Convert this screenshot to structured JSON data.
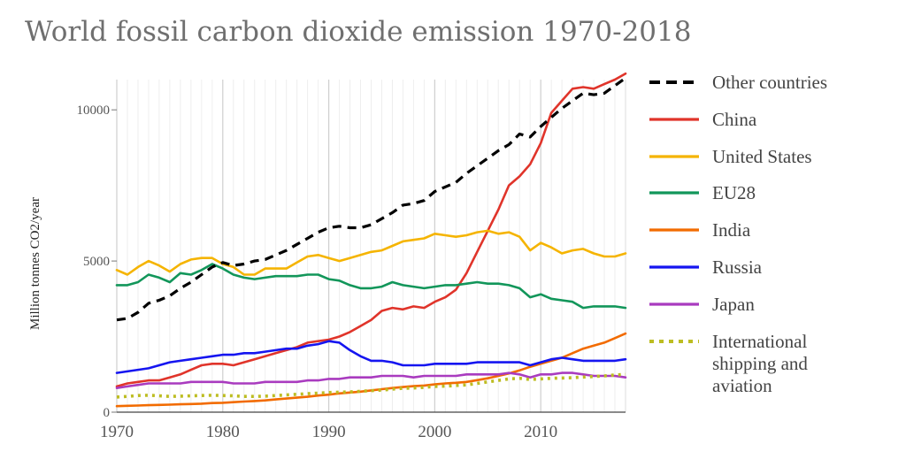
{
  "chart_data": {
    "type": "line",
    "title": "World fossil carbon dioxide emission 1970-2018",
    "xlabel": "",
    "ylabel": "Million tonnes CO2/year",
    "xlim": [
      1970,
      2018
    ],
    "ylim": [
      0,
      11000
    ],
    "x_ticks": [
      1970,
      1980,
      1990,
      2000,
      2010
    ],
    "y_ticks": [
      0,
      5000,
      10000
    ],
    "grid": "vertical",
    "legend_position": "right",
    "series": [
      {
        "name": "Other countries",
        "color": "#000000",
        "style": "dashed",
        "x": [
          1970,
          1971,
          1972,
          1973,
          1974,
          1975,
          1976,
          1977,
          1978,
          1979,
          1980,
          1981,
          1982,
          1983,
          1984,
          1985,
          1986,
          1987,
          1988,
          1989,
          1990,
          1991,
          1992,
          1993,
          1994,
          1995,
          1996,
          1997,
          1998,
          1999,
          2000,
          2001,
          2002,
          2003,
          2004,
          2005,
          2006,
          2007,
          2008,
          2009,
          2010,
          2011,
          2012,
          2013,
          2014,
          2015,
          2016,
          2017,
          2018
        ],
        "values": [
          3050,
          3100,
          3300,
          3600,
          3700,
          3850,
          4100,
          4300,
          4550,
          4800,
          4950,
          4850,
          4900,
          5000,
          5050,
          5200,
          5350,
          5550,
          5750,
          5950,
          6100,
          6150,
          6100,
          6100,
          6200,
          6400,
          6600,
          6850,
          6900,
          7000,
          7300,
          7450,
          7600,
          7900,
          8150,
          8400,
          8650,
          8850,
          9200,
          9100,
          9450,
          9750,
          10050,
          10300,
          10550,
          10500,
          10550,
          10800,
          11050
        ]
      },
      {
        "name": "China",
        "color": "#e0342a",
        "style": "solid",
        "x": [
          1970,
          1971,
          1972,
          1973,
          1974,
          1975,
          1976,
          1977,
          1978,
          1979,
          1980,
          1981,
          1982,
          1983,
          1984,
          1985,
          1986,
          1987,
          1988,
          1989,
          1990,
          1991,
          1992,
          1993,
          1994,
          1995,
          1996,
          1997,
          1998,
          1999,
          2000,
          2001,
          2002,
          2003,
          2004,
          2005,
          2006,
          2007,
          2008,
          2009,
          2010,
          2011,
          2012,
          2013,
          2014,
          2015,
          2016,
          2017,
          2018
        ],
        "values": [
          850,
          950,
          1000,
          1050,
          1050,
          1150,
          1250,
          1400,
          1550,
          1600,
          1600,
          1550,
          1650,
          1750,
          1850,
          1950,
          2050,
          2150,
          2300,
          2350,
          2400,
          2500,
          2650,
          2850,
          3050,
          3350,
          3450,
          3400,
          3500,
          3450,
          3650,
          3800,
          4050,
          4600,
          5300,
          6000,
          6700,
          7500,
          7800,
          8200,
          8900,
          9900,
          10300,
          10700,
          10750,
          10700,
          10850,
          11000,
          11200
        ]
      },
      {
        "name": "United States",
        "color": "#f5b400",
        "style": "solid",
        "x": [
          1970,
          1971,
          1972,
          1973,
          1974,
          1975,
          1976,
          1977,
          1978,
          1979,
          1980,
          1981,
          1982,
          1983,
          1984,
          1985,
          1986,
          1987,
          1988,
          1989,
          1990,
          1991,
          1992,
          1993,
          1994,
          1995,
          1996,
          1997,
          1998,
          1999,
          2000,
          2001,
          2002,
          2003,
          2004,
          2005,
          2006,
          2007,
          2008,
          2009,
          2010,
          2011,
          2012,
          2013,
          2014,
          2015,
          2016,
          2017,
          2018
        ],
        "values": [
          4700,
          4550,
          4800,
          5000,
          4850,
          4650,
          4900,
          5050,
          5100,
          5100,
          4900,
          4800,
          4550,
          4550,
          4750,
          4750,
          4750,
          4950,
          5150,
          5200,
          5100,
          5000,
          5100,
          5200,
          5300,
          5350,
          5500,
          5650,
          5700,
          5750,
          5900,
          5850,
          5800,
          5850,
          5950,
          6000,
          5900,
          5950,
          5800,
          5350,
          5600,
          5450,
          5250,
          5350,
          5400,
          5250,
          5150,
          5150,
          5250
        ]
      },
      {
        "name": "EU28",
        "color": "#12965a",
        "style": "solid",
        "x": [
          1970,
          1971,
          1972,
          1973,
          1974,
          1975,
          1976,
          1977,
          1978,
          1979,
          1980,
          1981,
          1982,
          1983,
          1984,
          1985,
          1986,
          1987,
          1988,
          1989,
          1990,
          1991,
          1992,
          1993,
          1994,
          1995,
          1996,
          1997,
          1998,
          1999,
          2000,
          2001,
          2002,
          2003,
          2004,
          2005,
          2006,
          2007,
          2008,
          2009,
          2010,
          2011,
          2012,
          2013,
          2014,
          2015,
          2016,
          2017,
          2018
        ],
        "values": [
          4200,
          4200,
          4300,
          4550,
          4450,
          4300,
          4600,
          4550,
          4700,
          4900,
          4750,
          4550,
          4450,
          4400,
          4450,
          4500,
          4500,
          4500,
          4550,
          4550,
          4400,
          4350,
          4200,
          4100,
          4100,
          4150,
          4300,
          4200,
          4150,
          4100,
          4150,
          4200,
          4200,
          4250,
          4300,
          4250,
          4250,
          4200,
          4100,
          3800,
          3900,
          3750,
          3700,
          3650,
          3450,
          3500,
          3500,
          3500,
          3450
        ]
      },
      {
        "name": "India",
        "color": "#f26b00",
        "style": "solid",
        "x": [
          1970,
          1971,
          1972,
          1973,
          1974,
          1975,
          1976,
          1977,
          1978,
          1979,
          1980,
          1981,
          1982,
          1983,
          1984,
          1985,
          1986,
          1987,
          1988,
          1989,
          1990,
          1991,
          1992,
          1993,
          1994,
          1995,
          1996,
          1997,
          1998,
          1999,
          2000,
          2001,
          2002,
          2003,
          2004,
          2005,
          2006,
          2007,
          2008,
          2009,
          2010,
          2011,
          2012,
          2013,
          2014,
          2015,
          2016,
          2017,
          2018
        ],
        "values": [
          200,
          210,
          220,
          230,
          240,
          250,
          260,
          270,
          280,
          300,
          310,
          330,
          350,
          370,
          390,
          420,
          450,
          480,
          510,
          550,
          580,
          620,
          650,
          680,
          720,
          760,
          800,
          830,
          860,
          880,
          920,
          950,
          970,
          1000,
          1060,
          1120,
          1200,
          1280,
          1380,
          1500,
          1600,
          1700,
          1800,
          1950,
          2100,
          2200,
          2300,
          2450,
          2600
        ]
      },
      {
        "name": "Russia",
        "color": "#1515f0",
        "style": "solid",
        "x": [
          1970,
          1971,
          1972,
          1973,
          1974,
          1975,
          1976,
          1977,
          1978,
          1979,
          1980,
          1981,
          1982,
          1983,
          1984,
          1985,
          1986,
          1987,
          1988,
          1989,
          1990,
          1991,
          1992,
          1993,
          1994,
          1995,
          1996,
          1997,
          1998,
          1999,
          2000,
          2001,
          2002,
          2003,
          2004,
          2005,
          2006,
          2007,
          2008,
          2009,
          2010,
          2011,
          2012,
          2013,
          2014,
          2015,
          2016,
          2017,
          2018
        ],
        "values": [
          1300,
          1350,
          1400,
          1450,
          1550,
          1650,
          1700,
          1750,
          1800,
          1850,
          1900,
          1900,
          1950,
          1950,
          2000,
          2050,
          2100,
          2100,
          2200,
          2250,
          2350,
          2300,
          2050,
          1850,
          1700,
          1700,
          1650,
          1550,
          1550,
          1550,
          1600,
          1600,
          1600,
          1600,
          1650,
          1650,
          1650,
          1650,
          1650,
          1550,
          1650,
          1750,
          1800,
          1750,
          1700,
          1700,
          1700,
          1700,
          1750
        ]
      },
      {
        "name": "Japan",
        "color": "#a93bbf",
        "style": "solid",
        "x": [
          1970,
          1971,
          1972,
          1973,
          1974,
          1975,
          1976,
          1977,
          1978,
          1979,
          1980,
          1981,
          1982,
          1983,
          1984,
          1985,
          1986,
          1987,
          1988,
          1989,
          1990,
          1991,
          1992,
          1993,
          1994,
          1995,
          1996,
          1997,
          1998,
          1999,
          2000,
          2001,
          2002,
          2003,
          2004,
          2005,
          2006,
          2007,
          2008,
          2009,
          2010,
          2011,
          2012,
          2013,
          2014,
          2015,
          2016,
          2017,
          2018
        ],
        "values": [
          800,
          850,
          900,
          950,
          950,
          950,
          950,
          1000,
          1000,
          1000,
          1000,
          950,
          950,
          950,
          1000,
          1000,
          1000,
          1000,
          1050,
          1050,
          1100,
          1100,
          1150,
          1150,
          1150,
          1200,
          1200,
          1200,
          1150,
          1200,
          1200,
          1200,
          1200,
          1250,
          1250,
          1250,
          1250,
          1300,
          1250,
          1150,
          1250,
          1250,
          1300,
          1300,
          1250,
          1200,
          1200,
          1200,
          1150
        ]
      },
      {
        "name": "International shipping and aviation",
        "color": "#bdbd22",
        "style": "dotted",
        "x": [
          1970,
          1971,
          1972,
          1973,
          1974,
          1975,
          1976,
          1977,
          1978,
          1979,
          1980,
          1981,
          1982,
          1983,
          1984,
          1985,
          1986,
          1987,
          1988,
          1989,
          1990,
          1991,
          1992,
          1993,
          1994,
          1995,
          1996,
          1997,
          1998,
          1999,
          2000,
          2001,
          2002,
          2003,
          2004,
          2005,
          2006,
          2007,
          2008,
          2009,
          2010,
          2011,
          2012,
          2013,
          2014,
          2015,
          2016,
          2017,
          2018
        ],
        "values": [
          500,
          520,
          550,
          560,
          540,
          520,
          530,
          540,
          550,
          560,
          550,
          540,
          520,
          520,
          530,
          550,
          570,
          590,
          610,
          630,
          650,
          660,
          670,
          690,
          710,
          730,
          760,
          790,
          800,
          820,
          850,
          860,
          880,
          900,
          950,
          1000,
          1050,
          1100,
          1120,
          1080,
          1100,
          1120,
          1130,
          1140,
          1160,
          1180,
          1200,
          1230,
          1250
        ]
      }
    ],
    "legend_lines": [
      [
        "Other countries"
      ],
      [
        "China"
      ],
      [
        "United States"
      ],
      [
        "EU28"
      ],
      [
        "India"
      ],
      [
        "Russia"
      ],
      [
        "Japan"
      ],
      [
        "International",
        "shipping and",
        "aviation"
      ]
    ]
  }
}
